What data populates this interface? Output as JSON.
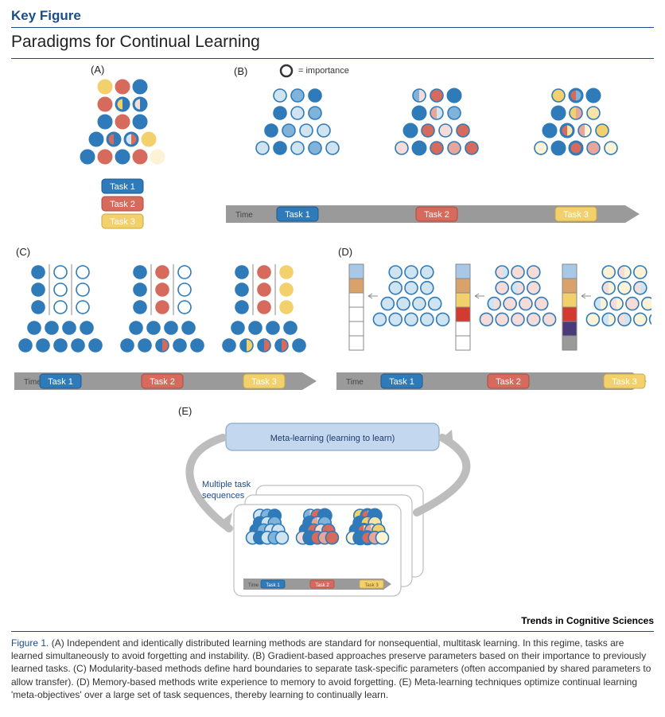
{
  "header": {
    "key_figure_label": "Key Figure",
    "title": "Paradigms for Continual Learning",
    "rule_color": "#1b4d8a",
    "label_color": "#1b4d8a"
  },
  "footer": {
    "journal": "Trends in Cognitive Sciences",
    "rule_color": "#1b4d8a",
    "caption_prefix": "Figure 1.",
    "caption_prefix_color": "#1b4d8a",
    "caption_body": "(A) Independent and identically distributed learning methods are standard for nonsequential, multitask learning. In this regime, tasks are learned simultaneously to avoid forgetting and instability. (B) Gradient-based approaches preserve parameters based on their importance to previously learned tasks. (C) Modularity-based methods define hard boundaries to separate task-specific parameters (often accompanied by shared parameters to allow transfer). (D) Memory-based methods write experience to memory to avoid forgetting. (E) Meta-learning techniques optimize continual learning 'meta-objectives' over a large set of task sequences, thereby learning to continually learn."
  },
  "colors": {
    "task1": "#2f7ab8",
    "task1_pill_border": "#1d5a90",
    "task2": "#d66a5c",
    "task2_pill_border": "#b34a3e",
    "task3": "#f2d06b",
    "task3_pill_border": "#caa843",
    "task3_text": "#6b5a18",
    "t1_full": "#2f7ab8",
    "t1_mid": "#7fb3d9",
    "t1_light": "#cfe3f1",
    "t2_full": "#d66a5c",
    "t2_mid": "#e7a69c",
    "t2_light": "#f6dcd8",
    "t3_full": "#f2d06b",
    "t3_mid": "#f8e4a7",
    "t3_light": "#fcf3d7",
    "white": "#ffffff",
    "stroke": "#2f7ab8",
    "border_gray": "#9a9a9a",
    "bar_gray": "#9a9a9a",
    "panel_border": "#bfbfbf",
    "arrow_gray": "#bdbdbd",
    "meta_box_fill": "#c3d7ee",
    "meta_box_stroke": "#8aa8cc",
    "mem_img1": "#a8c8e8",
    "mem_img2": "#d9a26a",
    "mem_img3": "#f2d06b",
    "mem_img4": "#d23b2f",
    "mem_img5": "#4a3a7a",
    "mem_img6": "#9a9a9a"
  },
  "labels": {
    "A": "(A)",
    "B": "(B)",
    "C": "(C)",
    "D": "(D)",
    "E": "(E)",
    "importance": "= importance",
    "time": "Time",
    "task1": "Task 1",
    "task2": "Task 2",
    "task3": "Task 3",
    "meta_box": "Meta-learning (learning to learn)",
    "multi_seq": "Multiple task\nsequences"
  },
  "geom": {
    "node_r": 8,
    "node_stroke_w": 1.6,
    "bold_stroke_w": 3,
    "col_gap": 22,
    "row_gap": 22,
    "timeline_h": 22,
    "pill_w": 52,
    "pill_h": 18,
    "arrow_w": 18
  },
  "panelA": {
    "layers": [
      {
        "n": 3,
        "thick": [
          3,
          3,
          3
        ],
        "half": [
          0,
          0,
          0
        ],
        "fill": [
          "t3_full",
          "t2_full",
          "t1_full"
        ],
        "ring": [
          "t3_full",
          "t2_full",
          "t1_full"
        ]
      },
      {
        "n": 3,
        "thick": [
          3,
          3,
          3
        ],
        "half": [
          0,
          1,
          1
        ],
        "fill": [
          "t2_full",
          "t3_full",
          "t2_light"
        ],
        "fillR": [
          "",
          "t1_full",
          "t1_full"
        ],
        "ring": [
          "t2_full",
          "t1_full",
          "t1_full"
        ]
      },
      {
        "n": 3,
        "thick": [
          3,
          3,
          3
        ],
        "half": [
          0,
          0,
          0
        ],
        "fill": [
          "t1_full",
          "t2_full",
          "t1_full"
        ],
        "ring": [
          "t1_full",
          "t2_full",
          "t1_full"
        ]
      },
      {
        "n": 4,
        "thick": [
          3,
          3,
          3,
          3
        ],
        "half": [
          0,
          1,
          1,
          0
        ],
        "fill": [
          "t1_full",
          "t2_full",
          "t1_light",
          "t3_full"
        ],
        "fillR": [
          "",
          "t1_full",
          "t2_full",
          ""
        ],
        "ring": [
          "t1_full",
          "t1_full",
          "t1_full",
          "t3_full"
        ]
      },
      {
        "n": 5,
        "thick": [
          3,
          3,
          3,
          3,
          3
        ],
        "half": [
          0,
          0,
          0,
          0,
          0
        ],
        "fill": [
          "t1_full",
          "t2_full",
          "t1_full",
          "t2_full",
          "t3_light"
        ],
        "ring": [
          "t1_full",
          "t2_full",
          "t1_full",
          "t2_full",
          "t3_light"
        ]
      }
    ]
  },
  "panelB": {
    "groups": [
      {
        "layers": [
          {
            "n": 3,
            "fill": [
              "t1_light",
              "t1_mid",
              "t1_full"
            ],
            "thick": [
              1,
              1,
              1
            ]
          },
          {
            "n": 3,
            "fill": [
              "t1_full",
              "t1_light",
              "t1_mid"
            ],
            "thick": [
              1,
              1,
              1
            ]
          },
          {
            "n": 4,
            "fill": [
              "t1_full",
              "t1_mid",
              "t1_light",
              "t1_light"
            ],
            "thick": [
              1,
              1,
              1,
              1
            ]
          },
          {
            "n": 5,
            "fill": [
              "t1_light",
              "t1_full",
              "t1_light",
              "t1_mid",
              "t1_light"
            ],
            "thick": [
              1,
              1,
              1,
              1,
              1
            ]
          }
        ]
      },
      {
        "layers": [
          {
            "n": 3,
            "fill": [
              "t1_mid",
              "t2_full",
              "t1_full"
            ],
            "thick": [
              1,
              1,
              3
            ],
            "half": [
              1,
              0,
              0
            ],
            "fillR": [
              "t2_light",
              "",
              ""
            ]
          },
          {
            "n": 3,
            "fill": [
              "t1_full",
              "t2_mid",
              "t1_mid"
            ],
            "thick": [
              3,
              1,
              1
            ],
            "half": [
              0,
              1,
              0
            ],
            "fillR": [
              "",
              "t1_light",
              ""
            ]
          },
          {
            "n": 4,
            "fill": [
              "t1_full",
              "t2_full",
              "t2_light",
              "t2_full"
            ],
            "thick": [
              3,
              1,
              1,
              1
            ]
          },
          {
            "n": 5,
            "fill": [
              "t2_light",
              "t1_full",
              "t2_full",
              "t2_mid",
              "t2_full"
            ],
            "thick": [
              1,
              3,
              1,
              1,
              1
            ]
          }
        ]
      },
      {
        "layers": [
          {
            "n": 3,
            "fill": [
              "t3_full",
              "t2_full",
              "t1_full"
            ],
            "thick": [
              1,
              3,
              3
            ],
            "half": [
              0,
              1,
              0
            ],
            "fillR": [
              "",
              "t1_mid",
              ""
            ]
          },
          {
            "n": 3,
            "fill": [
              "t1_full",
              "t3_full",
              "t3_mid"
            ],
            "thick": [
              3,
              1,
              1
            ],
            "half": [
              0,
              1,
              0
            ],
            "fillR": [
              "",
              "t2_mid",
              ""
            ]
          },
          {
            "n": 4,
            "fill": [
              "t1_full",
              "t2_full",
              "t2_mid",
              "t3_full"
            ],
            "thick": [
              3,
              3,
              1,
              1
            ],
            "half": [
              0,
              1,
              1,
              0
            ],
            "fillR": [
              "",
              "t3_mid",
              "t3_light",
              ""
            ]
          },
          {
            "n": 5,
            "fill": [
              "t3_light",
              "t1_full",
              "t2_full",
              "t2_mid",
              "t3_light"
            ],
            "thick": [
              1,
              3,
              3,
              1,
              1
            ],
            "half": [
              0,
              0,
              0,
              0,
              0
            ]
          }
        ]
      }
    ]
  },
  "panelC": {
    "groups": [
      {
        "cols_fill": [
          [
            "t1_full",
            "t1_full",
            "t1_full"
          ],
          [
            "white",
            "white",
            "white"
          ],
          [
            "white",
            "white",
            "white"
          ]
        ],
        "bottom": [
          "t1_full",
          "t1_full",
          "t1_full",
          "t1_full",
          "t1_full"
        ]
      },
      {
        "cols_fill": [
          [
            "t1_full",
            "t1_full",
            "t1_full"
          ],
          [
            "t2_full",
            "t2_full",
            "t2_full"
          ],
          [
            "white",
            "white",
            "white"
          ]
        ],
        "bottom": [
          "t1_full",
          "t1_full",
          "t1_full",
          "t1_full",
          "t1_full"
        ],
        "bottom_half": [
          0,
          0,
          1,
          0,
          0
        ],
        "bottomR": [
          "",
          "",
          "t2_full",
          "",
          ""
        ]
      },
      {
        "cols_fill": [
          [
            "t1_full",
            "t1_full",
            "t1_full"
          ],
          [
            "t2_full",
            "t2_full",
            "t2_full"
          ],
          [
            "t3_full",
            "t3_full",
            "t3_full"
          ]
        ],
        "bottom": [
          "t1_full",
          "t1_full",
          "t1_full",
          "t1_full",
          "t1_full"
        ],
        "bottom_half": [
          0,
          1,
          1,
          1,
          0
        ],
        "bottomR": [
          "",
          "t3_full",
          "t2_full",
          "t2_full",
          ""
        ]
      }
    ]
  },
  "panelD": {
    "mem_slots": 6,
    "groups": [
      {
        "mem_filled": 2,
        "mem_colors": [
          "mem_img1",
          "mem_img2"
        ],
        "layers": [
          {
            "n": 3,
            "fill": [
              "t1_light",
              "t1_light",
              "t1_light"
            ]
          },
          {
            "n": 3,
            "fill": [
              "t1_light",
              "t1_light",
              "t1_light"
            ]
          },
          {
            "n": 4,
            "fill": [
              "t1_light",
              "t1_light",
              "t1_light",
              "t1_light"
            ]
          },
          {
            "n": 5,
            "fill": [
              "t1_light",
              "t1_light",
              "t1_light",
              "t1_light",
              "t1_light"
            ]
          }
        ]
      },
      {
        "mem_filled": 4,
        "mem_colors": [
          "mem_img1",
          "mem_img2",
          "mem_img3",
          "mem_img4"
        ],
        "layers": [
          {
            "n": 3,
            "fill": [
              "t2_light",
              "t2_light",
              "t2_light"
            ],
            "half": [
              1,
              0,
              0
            ],
            "fillR": [
              "t1_light",
              "",
              ""
            ]
          },
          {
            "n": 3,
            "fill": [
              "t2_light",
              "t1_light",
              "t2_light"
            ],
            "half": [
              0,
              1,
              0
            ],
            "fillR": [
              "",
              "t2_light",
              ""
            ]
          },
          {
            "n": 4,
            "fill": [
              "t1_light",
              "t2_light",
              "t2_light",
              "t2_light"
            ],
            "half": [
              1,
              0,
              0,
              0
            ],
            "fillR": [
              "t2_light",
              "",
              "",
              ""
            ]
          },
          {
            "n": 5,
            "fill": [
              "t2_light",
              "t2_light",
              "t2_light",
              "t2_light",
              "t2_light"
            ]
          }
        ]
      },
      {
        "mem_filled": 6,
        "mem_colors": [
          "mem_img1",
          "mem_img2",
          "mem_img3",
          "mem_img4",
          "mem_img5",
          "mem_img6"
        ],
        "layers": [
          {
            "n": 3,
            "fill": [
              "t3_light",
              "t2_light",
              "t3_light"
            ],
            "half": [
              0,
              1,
              0
            ],
            "fillR": [
              "",
              "t3_light",
              ""
            ]
          },
          {
            "n": 3,
            "fill": [
              "t2_light",
              "t3_light",
              "t2_light"
            ],
            "half": [
              1,
              0,
              1
            ],
            "fillR": [
              "t3_light",
              "",
              "t1_light"
            ]
          },
          {
            "n": 4,
            "fill": [
              "t1_light",
              "t2_light",
              "t2_light",
              "t3_light"
            ],
            "half": [
              1,
              1,
              0,
              0
            ],
            "fillR": [
              "t3_light",
              "t3_light",
              "",
              ""
            ]
          },
          {
            "n": 5,
            "fill": [
              "t3_light",
              "t1_light",
              "t2_light",
              "t3_light",
              "t3_light"
            ],
            "half": [
              0,
              1,
              1,
              0,
              0
            ],
            "fillR": [
              "",
              "t3_light",
              "t1_light",
              "",
              ""
            ]
          }
        ]
      }
    ]
  },
  "panelE": {
    "stacked_cards": 3
  }
}
